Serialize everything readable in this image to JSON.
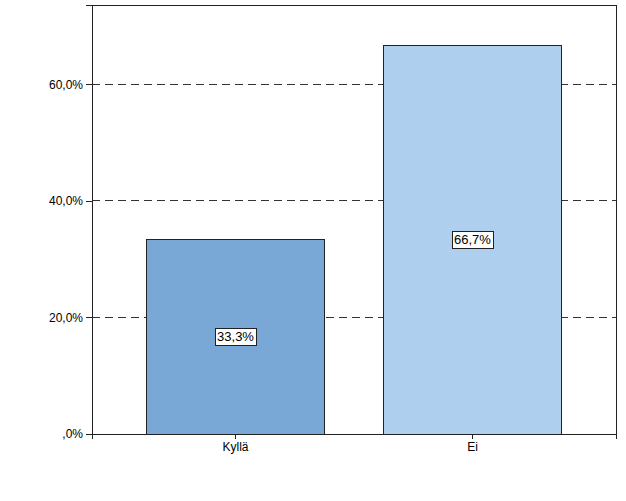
{
  "chart_data": {
    "type": "bar",
    "categories": [
      "Kyllä",
      "Ei"
    ],
    "values": [
      33.3,
      66.7
    ],
    "value_labels": [
      "33,3%",
      "66,7%"
    ],
    "colors": [
      "#79a7d6",
      "#aed0ee"
    ],
    "ylim": [
      0,
      73.6
    ],
    "yticks": [
      {
        "value": 0,
        "label": ",0%"
      },
      {
        "value": 20,
        "label": "20,0%"
      },
      {
        "value": 40,
        "label": "40,0%"
      },
      {
        "value": 60,
        "label": "60,0%"
      }
    ],
    "grid": true,
    "data_labels": true
  }
}
